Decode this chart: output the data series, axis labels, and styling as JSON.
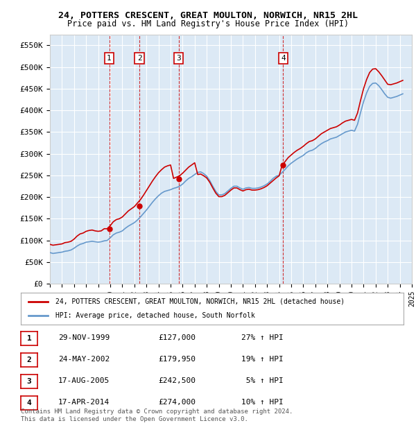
{
  "title": "24, POTTERS CRESCENT, GREAT MOULTON, NORWICH, NR15 2HL",
  "subtitle": "Price paid vs. HM Land Registry's House Price Index (HPI)",
  "ylabel": "",
  "ylim": [
    0,
    575000
  ],
  "yticks": [
    0,
    50000,
    100000,
    150000,
    200000,
    250000,
    300000,
    350000,
    400000,
    450000,
    500000,
    550000
  ],
  "ytick_labels": [
    "£0",
    "£50K",
    "£100K",
    "£150K",
    "£200K",
    "£250K",
    "£300K",
    "£350K",
    "£400K",
    "£450K",
    "£500K",
    "£550K"
  ],
  "background_color": "#dce9f5",
  "plot_bg_color": "#dce9f5",
  "grid_color": "#ffffff",
  "sale_dates": [
    "1999-11-29",
    "2002-05-24",
    "2005-08-17",
    "2014-04-17"
  ],
  "sale_prices": [
    127000,
    179950,
    242500,
    274000
  ],
  "sale_labels": [
    "1",
    "2",
    "3",
    "4"
  ],
  "legend_label_red": "24, POTTERS CRESCENT, GREAT MOULTON, NORWICH, NR15 2HL (detached house)",
  "legend_label_blue": "HPI: Average price, detached house, South Norfolk",
  "table_rows": [
    [
      "1",
      "29-NOV-1999",
      "£127,000",
      "27% ↑ HPI"
    ],
    [
      "2",
      "24-MAY-2002",
      "£179,950",
      "19% ↑ HPI"
    ],
    [
      "3",
      "17-AUG-2005",
      "£242,500",
      " 5% ↑ HPI"
    ],
    [
      "4",
      "17-APR-2014",
      "£274,000",
      "10% ↑ HPI"
    ]
  ],
  "footer": "Contains HM Land Registry data © Crown copyright and database right 2024.\nThis data is licensed under the Open Government Licence v3.0.",
  "red_color": "#cc0000",
  "blue_color": "#6699cc",
  "hpi_x": [
    1995.0,
    1995.25,
    1995.5,
    1995.75,
    1996.0,
    1996.25,
    1996.5,
    1996.75,
    1997.0,
    1997.25,
    1997.5,
    1997.75,
    1998.0,
    1998.25,
    1998.5,
    1998.75,
    1999.0,
    1999.25,
    1999.5,
    1999.75,
    2000.0,
    2000.25,
    2000.5,
    2000.75,
    2001.0,
    2001.25,
    2001.5,
    2001.75,
    2002.0,
    2002.25,
    2002.5,
    2002.75,
    2003.0,
    2003.25,
    2003.5,
    2003.75,
    2004.0,
    2004.25,
    2004.5,
    2004.75,
    2005.0,
    2005.25,
    2005.5,
    2005.75,
    2006.0,
    2006.25,
    2006.5,
    2006.75,
    2007.0,
    2007.25,
    2007.5,
    2007.75,
    2008.0,
    2008.25,
    2008.5,
    2008.75,
    2009.0,
    2009.25,
    2009.5,
    2009.75,
    2010.0,
    2010.25,
    2010.5,
    2010.75,
    2011.0,
    2011.25,
    2011.5,
    2011.75,
    2012.0,
    2012.25,
    2012.5,
    2012.75,
    2013.0,
    2013.25,
    2013.5,
    2013.75,
    2014.0,
    2014.25,
    2014.5,
    2014.75,
    2015.0,
    2015.25,
    2015.5,
    2015.75,
    2016.0,
    2016.25,
    2016.5,
    2016.75,
    2017.0,
    2017.25,
    2017.5,
    2017.75,
    2018.0,
    2018.25,
    2018.5,
    2018.75,
    2019.0,
    2019.25,
    2019.5,
    2019.75,
    2020.0,
    2020.25,
    2020.5,
    2020.75,
    2021.0,
    2021.25,
    2021.5,
    2021.75,
    2022.0,
    2022.25,
    2022.5,
    2022.75,
    2023.0,
    2023.25,
    2023.5,
    2023.75,
    2024.0,
    2024.25
  ],
  "hpi_y": [
    72000,
    70000,
    71000,
    72000,
    73000,
    75000,
    76000,
    78000,
    82000,
    87000,
    91000,
    93000,
    96000,
    97000,
    98000,
    97000,
    96000,
    97000,
    99000,
    100000,
    106000,
    113000,
    117000,
    119000,
    122000,
    128000,
    133000,
    137000,
    141000,
    147000,
    154000,
    162000,
    170000,
    179000,
    188000,
    196000,
    203000,
    209000,
    213000,
    215000,
    217000,
    220000,
    222000,
    225000,
    230000,
    237000,
    243000,
    247000,
    252000,
    257000,
    258000,
    254000,
    248000,
    238000,
    225000,
    213000,
    205000,
    205000,
    208000,
    214000,
    220000,
    225000,
    225000,
    221000,
    218000,
    221000,
    222000,
    220000,
    220000,
    221000,
    223000,
    226000,
    230000,
    236000,
    243000,
    248000,
    250000,
    257000,
    264000,
    272000,
    278000,
    283000,
    288000,
    292000,
    296000,
    302000,
    306000,
    308000,
    312000,
    318000,
    323000,
    327000,
    330000,
    334000,
    336000,
    338000,
    342000,
    346000,
    350000,
    352000,
    354000,
    352000,
    368000,
    395000,
    420000,
    440000,
    455000,
    462000,
    463000,
    457000,
    448000,
    438000,
    430000,
    428000,
    430000,
    432000,
    435000,
    438000
  ],
  "red_x": [
    1995.0,
    1995.25,
    1995.5,
    1995.75,
    1996.0,
    1996.25,
    1996.5,
    1996.75,
    1997.0,
    1997.25,
    1997.5,
    1997.75,
    1998.0,
    1998.25,
    1998.5,
    1998.75,
    1999.0,
    1999.25,
    1999.5,
    1999.75,
    2000.0,
    2000.25,
    2000.5,
    2000.75,
    2001.0,
    2001.25,
    2001.5,
    2001.75,
    2002.0,
    2002.25,
    2002.5,
    2002.75,
    2003.0,
    2003.25,
    2003.5,
    2003.75,
    2004.0,
    2004.25,
    2004.5,
    2004.75,
    2005.0,
    2005.25,
    2005.5,
    2005.75,
    2006.0,
    2006.25,
    2006.5,
    2006.75,
    2007.0,
    2007.25,
    2007.5,
    2007.75,
    2008.0,
    2008.25,
    2008.5,
    2008.75,
    2009.0,
    2009.25,
    2009.5,
    2009.75,
    2010.0,
    2010.25,
    2010.5,
    2010.75,
    2011.0,
    2011.25,
    2011.5,
    2011.75,
    2012.0,
    2012.25,
    2012.5,
    2012.75,
    2013.0,
    2013.25,
    2013.5,
    2013.75,
    2014.0,
    2014.25,
    2014.5,
    2014.75,
    2015.0,
    2015.25,
    2015.5,
    2015.75,
    2016.0,
    2016.25,
    2016.5,
    2016.75,
    2017.0,
    2017.25,
    2017.5,
    2017.75,
    2018.0,
    2018.25,
    2018.5,
    2018.75,
    2019.0,
    2019.25,
    2019.5,
    2019.75,
    2020.0,
    2020.25,
    2020.5,
    2020.75,
    2021.0,
    2021.25,
    2021.5,
    2021.75,
    2022.0,
    2022.25,
    2022.5,
    2022.75,
    2023.0,
    2023.25,
    2023.5,
    2023.75,
    2024.0,
    2024.25
  ],
  "red_y": [
    91000,
    89000,
    90000,
    91000,
    92000,
    95000,
    96000,
    98000,
    103000,
    110000,
    115000,
    117000,
    121000,
    123000,
    124000,
    122000,
    121000,
    122000,
    127000,
    127000,
    134000,
    143000,
    148000,
    150000,
    154000,
    161000,
    168000,
    173000,
    178000,
    186000,
    194000,
    204000,
    215000,
    226000,
    237000,
    247000,
    256000,
    263000,
    269000,
    272000,
    274000,
    243000,
    246000,
    249000,
    255000,
    262000,
    269000,
    274000,
    279000,
    252000,
    253000,
    249000,
    244000,
    234000,
    221000,
    209000,
    201000,
    201000,
    204000,
    210000,
    216000,
    221000,
    221000,
    217000,
    214000,
    217000,
    218000,
    216000,
    216000,
    217000,
    219000,
    222000,
    226000,
    232000,
    238000,
    244000,
    249000,
    274000,
    282000,
    291000,
    297000,
    303000,
    308000,
    312000,
    317000,
    323000,
    328000,
    330000,
    334000,
    340000,
    346000,
    350000,
    354000,
    358000,
    360000,
    362000,
    366000,
    371000,
    375000,
    377000,
    379000,
    377000,
    394000,
    423000,
    450000,
    471000,
    487000,
    495000,
    496000,
    489000,
    480000,
    470000,
    460000,
    459000,
    461000,
    463000,
    466000,
    469000
  ]
}
